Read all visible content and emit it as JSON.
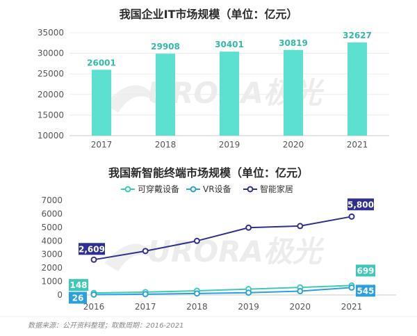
{
  "colors": {
    "bar": "#5ce0cf",
    "bar_label": "#35b8a8",
    "wearable": "#3ec9b6",
    "vr": "#2aa0dd",
    "smarthome": "#2e2f8f"
  },
  "watermark": "URORA极光",
  "footer": {
    "source": "数据来源：公开资料整理；取数周期：2016-2021"
  },
  "chart_data": [
    {
      "type": "bar",
      "title": "我国企业IT市场规模（单位：亿元）",
      "categories": [
        "2017",
        "2018",
        "2019",
        "2020",
        "2021"
      ],
      "values": [
        26001,
        29908,
        30401,
        30819,
        32627
      ],
      "data_labels": [
        "26001",
        "29908",
        "30401",
        "30819",
        "32627"
      ],
      "ylim": [
        10000,
        35000
      ],
      "yticks": [
        "10000",
        "15000",
        "20000",
        "25000",
        "30000",
        "35000"
      ],
      "grid": true
    },
    {
      "type": "line",
      "title": "我国新智能终端市场规模（单位：亿元）",
      "categories": [
        "2016",
        "2017",
        "2018",
        "2019",
        "2020",
        "2021"
      ],
      "ylim": [
        0,
        7000
      ],
      "yticks": [
        "0",
        "1000",
        "2000",
        "3000",
        "4000",
        "5000",
        "6000",
        "7000"
      ],
      "legend_position": "top-center",
      "grid": false,
      "series": [
        {
          "name": "可穿戴设备",
          "color_key": "wearable",
          "values": [
            148,
            210,
            310,
            430,
            560,
            699
          ]
        },
        {
          "name": "VR设备",
          "color_key": "vr",
          "values": [
            26,
            60,
            110,
            170,
            280,
            545
          ]
        },
        {
          "name": "智能家居",
          "color_key": "smarthome",
          "values": [
            2609,
            3250,
            4000,
            4980,
            5100,
            5800
          ]
        }
      ],
      "callouts": [
        {
          "series": 2,
          "index": 0,
          "text": "2,609"
        },
        {
          "series": 2,
          "index": 5,
          "text": "5,800"
        },
        {
          "series": 0,
          "index": 0,
          "text": "148"
        },
        {
          "series": 0,
          "index": 5,
          "text": "699"
        },
        {
          "series": 1,
          "index": 0,
          "text": "26"
        },
        {
          "series": 1,
          "index": 5,
          "text": "545"
        }
      ]
    }
  ]
}
